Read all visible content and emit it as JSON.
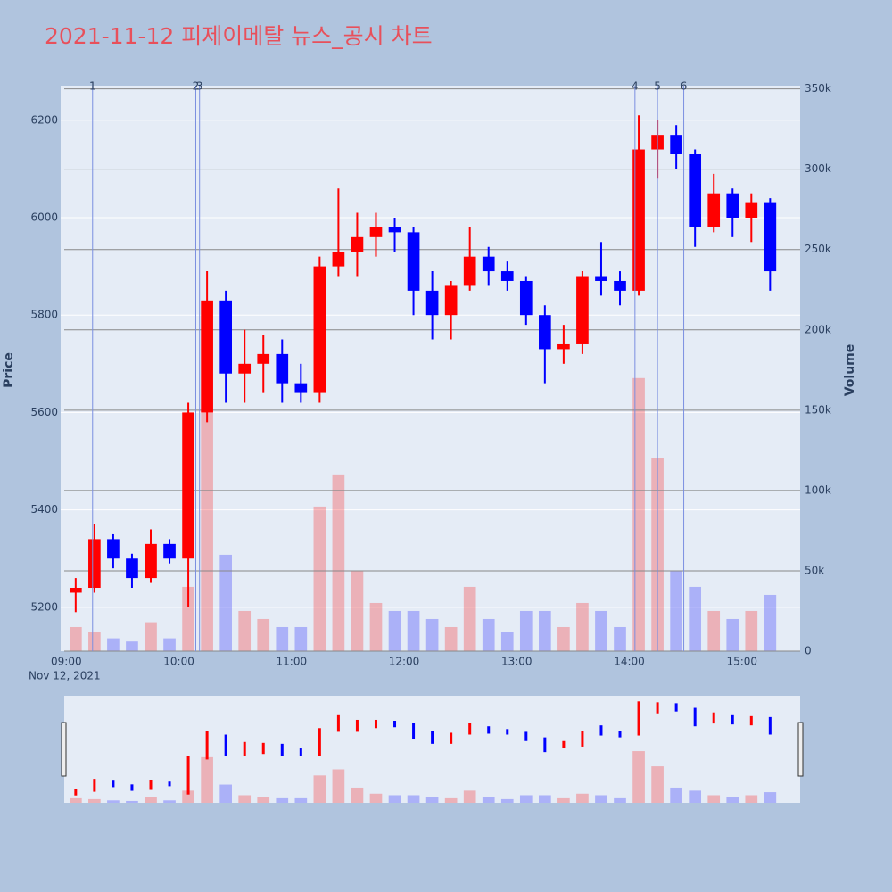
{
  "chart_data": {
    "type": "candlestick",
    "title": "2021-11-12 피제이메탈 뉴스_공시 차트",
    "y_title": "Price",
    "y2_title": "Volume",
    "x_date_label": "Nov 12, 2021",
    "increasing_color": "#ff0000",
    "decreasing_color": "#0000ff",
    "x": [
      "2021-11-12 09:00",
      "2021-11-12 09:10",
      "2021-11-12 09:20",
      "2021-11-12 09:30",
      "2021-11-12 09:40",
      "2021-11-12 09:50",
      "2021-11-12 10:00",
      "2021-11-12 10:10",
      "2021-11-12 10:20",
      "2021-11-12 10:30",
      "2021-11-12 10:40",
      "2021-11-12 10:50",
      "2021-11-12 11:00",
      "2021-11-12 11:10",
      "2021-11-12 11:20",
      "2021-11-12 11:30",
      "2021-11-12 11:40",
      "2021-11-12 11:50",
      "2021-11-12 12:00",
      "2021-11-12 12:10",
      "2021-11-12 12:20",
      "2021-11-12 12:30",
      "2021-11-12 12:40",
      "2021-11-12 12:50",
      "2021-11-12 13:00",
      "2021-11-12 13:10",
      "2021-11-12 13:20",
      "2021-11-12 13:30",
      "2021-11-12 13:40",
      "2021-11-12 13:50",
      "2021-11-12 14:00",
      "2021-11-12 14:10",
      "2021-11-12 14:20",
      "2021-11-12 14:30",
      "2021-11-12 14:40",
      "2021-11-12 14:50",
      "2021-11-12 15:00",
      "2021-11-12 15:10"
    ],
    "open": [
      5230,
      5240,
      5340,
      5300,
      5260,
      5330,
      5300,
      5600,
      5830,
      5680,
      5700,
      5720,
      5660,
      5640,
      5900,
      5930,
      5960,
      5980,
      5970,
      5850,
      5800,
      5860,
      5920,
      5890,
      5870,
      5800,
      5730,
      5740,
      5880,
      5870,
      5850,
      6140,
      6170,
      6130,
      5980,
      6050,
      6000,
      6030
    ],
    "high": [
      5260,
      5370,
      5350,
      5310,
      5360,
      5340,
      5620,
      5890,
      5850,
      5770,
      5760,
      5750,
      5700,
      5920,
      6060,
      6010,
      6010,
      6000,
      5980,
      5890,
      5870,
      5980,
      5940,
      5910,
      5880,
      5820,
      5780,
      5890,
      5950,
      5890,
      6210,
      6200,
      6190,
      6140,
      6090,
      6060,
      6050,
      6040
    ],
    "low": [
      5190,
      5230,
      5280,
      5240,
      5250,
      5290,
      5200,
      5580,
      5620,
      5620,
      5640,
      5620,
      5620,
      5620,
      5880,
      5880,
      5920,
      5930,
      5800,
      5750,
      5750,
      5850,
      5860,
      5850,
      5780,
      5660,
      5700,
      5720,
      5840,
      5820,
      5840,
      6080,
      6100,
      5940,
      5970,
      5960,
      5950,
      5850
    ],
    "close": [
      5240,
      5340,
      5300,
      5260,
      5330,
      5300,
      5600,
      5830,
      5680,
      5700,
      5720,
      5660,
      5640,
      5900,
      5930,
      5960,
      5980,
      5970,
      5850,
      5800,
      5860,
      5920,
      5890,
      5870,
      5800,
      5730,
      5740,
      5880,
      5870,
      5850,
      6140,
      6170,
      6130,
      5980,
      6050,
      6000,
      6030,
      5890
    ],
    "volume": [
      15000,
      12000,
      8000,
      6000,
      18000,
      8000,
      40000,
      150000,
      60000,
      25000,
      20000,
      15000,
      15000,
      90000,
      110000,
      50000,
      30000,
      25000,
      25000,
      20000,
      15000,
      40000,
      20000,
      12000,
      25000,
      25000,
      15000,
      30000,
      25000,
      15000,
      170000,
      120000,
      50000,
      40000,
      25000,
      20000,
      25000,
      35000
    ],
    "xlim": [
      "2021-11-12 08:57",
      "2021-11-12 15:31"
    ],
    "xticks": [
      {
        "value": "2021-11-12 09:00",
        "label": "09:00"
      },
      {
        "value": "2021-11-12 10:00",
        "label": "10:00"
      },
      {
        "value": "2021-11-12 11:00",
        "label": "11:00"
      },
      {
        "value": "2021-11-12 12:00",
        "label": "12:00"
      },
      {
        "value": "2021-11-12 13:00",
        "label": "13:00"
      },
      {
        "value": "2021-11-12 14:00",
        "label": "14:00"
      },
      {
        "value": "2021-11-12 15:00",
        "label": "15:00"
      }
    ],
    "ylim": [
      5110,
      6271
    ],
    "yticks": [
      5200,
      5400,
      5600,
      5800,
      6000,
      6200
    ],
    "y2lim": [
      0,
      352000
    ],
    "y2ticks": [
      0,
      {
        "value": 50000,
        "label": "50k"
      },
      {
        "value": 100000,
        "label": "100k"
      },
      {
        "value": 150000,
        "label": "150k"
      },
      {
        "value": 200000,
        "label": "200k"
      },
      {
        "value": 250000,
        "label": "250k"
      },
      {
        "value": 300000,
        "label": "300k"
      },
      {
        "value": 350000,
        "label": "350k"
      }
    ],
    "events": [
      {
        "x": "2021-11-12 09:14",
        "label": "1"
      },
      {
        "x": "2021-11-12 10:09",
        "label": "2"
      },
      {
        "x": "2021-11-12 10:11",
        "label": "3"
      },
      {
        "x": "2021-11-12 14:03",
        "label": "4"
      },
      {
        "x": "2021-11-12 14:15",
        "label": "5"
      },
      {
        "x": "2021-11-12 14:29",
        "label": "6"
      }
    ]
  }
}
